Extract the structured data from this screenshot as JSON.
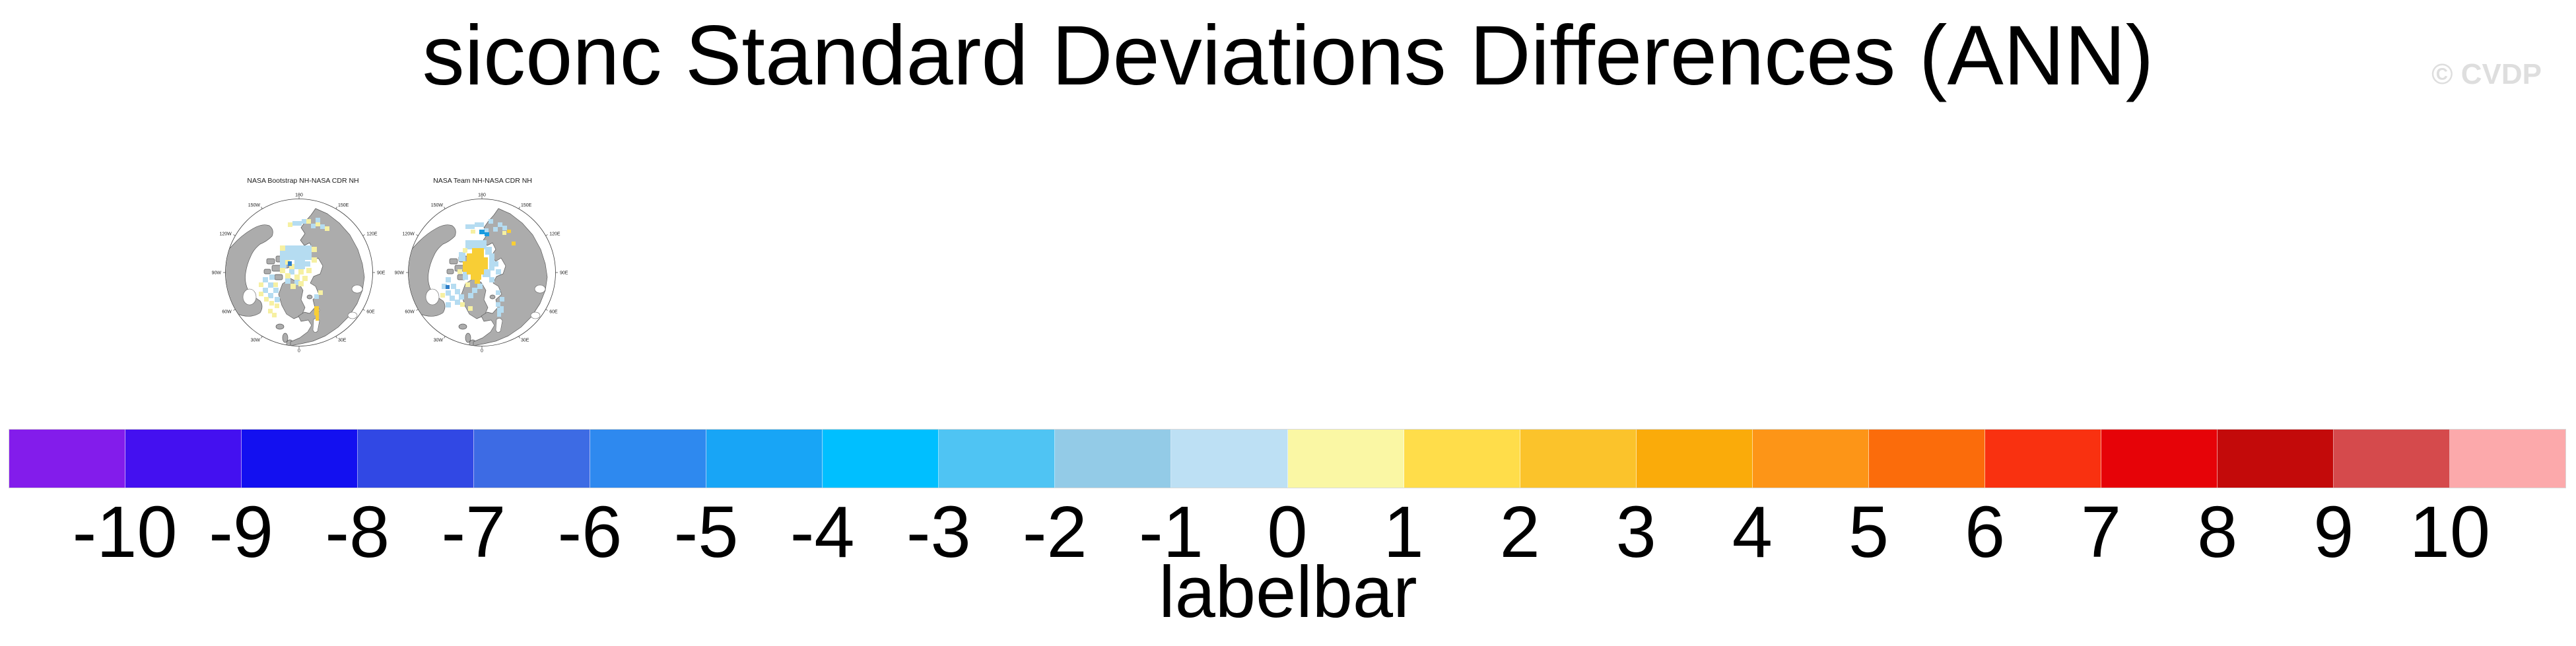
{
  "title": "siconc Standard Deviations Differences (ANN)",
  "watermark": "© CVDP",
  "maps": {
    "ring_labels": [
      "180",
      "150E",
      "120E",
      "90E",
      "60E",
      "30E",
      "0",
      "30W",
      "60W",
      "90W",
      "120W",
      "150W"
    ],
    "palette": {
      "land": "#acacac",
      "coastline": "#5a5a5a",
      "ocean": "#ffffff",
      "patch_light_blue": "#b5dcf1",
      "patch_pale_yellow": "#f6f0a2",
      "patch_gold": "#f8ce35",
      "patch_medium_blue": "#2e7ec8",
      "patch_deep_blue": "#1b9ce0"
    },
    "panels": [
      {
        "title": "NASA Bootstrap NH-NASA CDR NH"
      },
      {
        "title": "NASA Team NH-NASA CDR NH"
      }
    ]
  },
  "colorbar": {
    "caption": "labelbar",
    "tick_labels": [
      "-10",
      "-9",
      "-8",
      "-7",
      "-6",
      "-5",
      "-4",
      "-3",
      "-2",
      "-1",
      "0",
      "1",
      "2",
      "3",
      "4",
      "5",
      "6",
      "7",
      "8",
      "9",
      "10"
    ],
    "colors": [
      "#831ceb",
      "#4410f0",
      "#1310f0",
      "#3148e4",
      "#3d6be4",
      "#2e89ef",
      "#18a5f6",
      "#00bfff",
      "#4fc4f3",
      "#93cbe7",
      "#bde0f4",
      "#faf7a4",
      "#ffdd4a",
      "#fbc32b",
      "#faab0a",
      "#fd9517",
      "#fb6c0b",
      "#f93110",
      "#e60308",
      "#c30a0a",
      "#d54a4c",
      "#fca9ab"
    ],
    "border_color": "#d9d9d9"
  },
  "chart_data": {
    "type": "heatmap",
    "title": "siconc Standard Deviations Differences (ANN)",
    "panels": [
      {
        "title": "NASA Bootstrap NH-NASA CDR NH",
        "projection": "Northern Hemisphere polar stereographic",
        "meridian_labels": [
          "180",
          "150E",
          "120E",
          "90E",
          "60E",
          "30E",
          "0",
          "30W",
          "60W",
          "90W",
          "120W",
          "150W"
        ],
        "visual_summary": "Scattered small differences of about -1 (light blue) and +1 (pale yellow) over the central Arctic, Baffin Bay and Siberian shelf seas; one gold patch near +4 over the Baltic Sea."
      },
      {
        "title": "NASA Team NH-NASA CDR NH",
        "projection": "Northern Hemisphere polar stereographic",
        "meridian_labels": [
          "180",
          "150E",
          "120E",
          "90E",
          "60E",
          "30E",
          "0",
          "30W",
          "60W",
          "90W",
          "120W",
          "150W"
        ],
        "visual_summary": "Light blue (about -1) over much of the central Arctic with a large gold patch (about +4) near the pole; a few deeper blue cells (about -3) along the East Siberian coast."
      }
    ],
    "colorbar": {
      "caption": "labelbar",
      "levels": [
        -10,
        -9,
        -8,
        -7,
        -6,
        -5,
        -4,
        -3,
        -2,
        -1,
        0,
        1,
        2,
        3,
        4,
        5,
        6,
        7,
        8,
        9,
        10
      ],
      "n_colors": 22,
      "colors": [
        "#831ceb",
        "#4410f0",
        "#1310f0",
        "#3148e4",
        "#3d6be4",
        "#2e89ef",
        "#18a5f6",
        "#00bfff",
        "#4fc4f3",
        "#93cbe7",
        "#bde0f4",
        "#faf7a4",
        "#ffdd4a",
        "#fbc32b",
        "#faab0a",
        "#fd9517",
        "#fb6c0b",
        "#f93110",
        "#e60308",
        "#c30a0a",
        "#d54a4c",
        "#fca9ab"
      ],
      "legend_position": "bottom"
    }
  }
}
